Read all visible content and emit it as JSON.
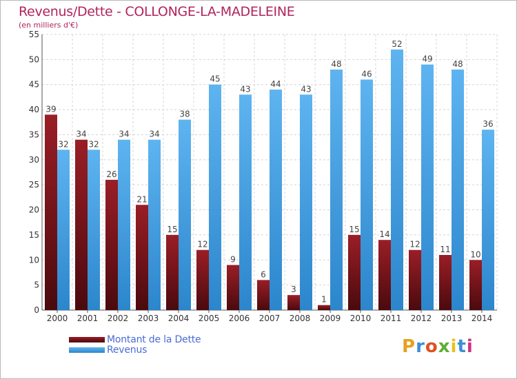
{
  "chart_data": {
    "type": "bar",
    "title": "Revenus/Dette - COLLONGE-LA-MADELEINE",
    "subtitle": "(en milliers d'€)",
    "categories": [
      "2000",
      "2001",
      "2002",
      "2003",
      "2004",
      "2005",
      "2006",
      "2007",
      "2008",
      "2009",
      "2010",
      "2011",
      "2012",
      "2013",
      "2014"
    ],
    "series": [
      {
        "name": "Montant de la Dette",
        "color": "#7a1218",
        "values": [
          39,
          34,
          26,
          21,
          15,
          12,
          9,
          6,
          3,
          1,
          15,
          14,
          12,
          11,
          10
        ]
      },
      {
        "name": "Revenus",
        "color": "#4ea4e4",
        "values": [
          32,
          32,
          34,
          34,
          38,
          45,
          43,
          44,
          43,
          48,
          46,
          52,
          49,
          48,
          36
        ]
      }
    ],
    "ylim": [
      0,
      55
    ],
    "yticks": [
      0,
      5,
      10,
      15,
      20,
      25,
      30,
      35,
      40,
      45,
      50,
      55
    ],
    "grid": true,
    "legend_position": "bottom-left"
  },
  "branding": {
    "logo_text": "Proxiti",
    "logo_colors": [
      "#e8a020",
      "#3a8fd8",
      "#e05020",
      "#5ab030",
      "#e8c020",
      "#3a8fd8",
      "#d03080"
    ]
  }
}
